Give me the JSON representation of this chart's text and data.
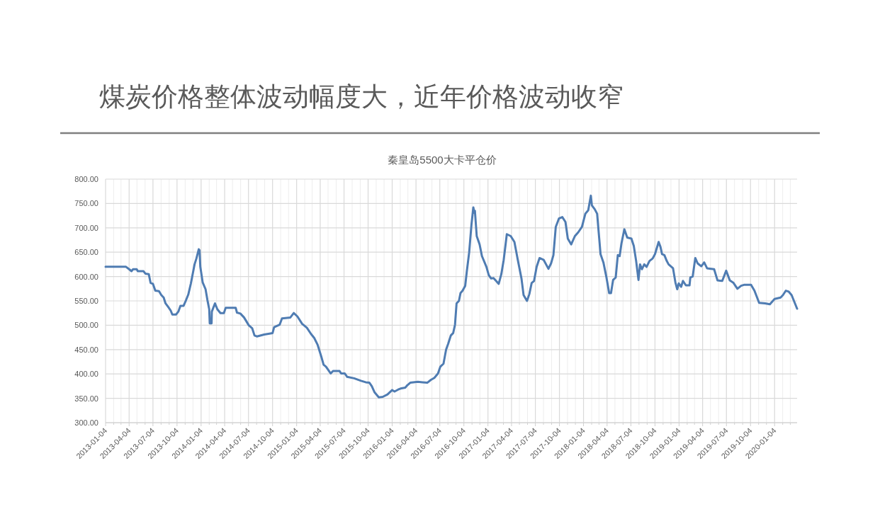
{
  "chart_data": {
    "type": "line",
    "title": "煤炭价格整体波动幅度大，近年价格波动收窄",
    "subtitle": "秦皇岛5500大卡平仓价",
    "xlim": [
      "2013-01-04",
      "2020-03-30"
    ],
    "ylim": [
      300,
      800
    ],
    "yticks": [
      {
        "value": 300,
        "label": "300.00"
      },
      {
        "value": 350,
        "label": "350.00"
      },
      {
        "value": 400,
        "label": "400.00"
      },
      {
        "value": 450,
        "label": "450.00"
      },
      {
        "value": 500,
        "label": "500.00"
      },
      {
        "value": 550,
        "label": "550.00"
      },
      {
        "value": 600,
        "label": "600.00"
      },
      {
        "value": 650,
        "label": "650.00"
      },
      {
        "value": 700,
        "label": "700.00"
      },
      {
        "value": 750,
        "label": "750.00"
      },
      {
        "value": 800,
        "label": "800.00"
      }
    ],
    "xticks": [
      {
        "value": "2013-01-04",
        "label": "2013-01-04"
      },
      {
        "value": "2013-02-04",
        "label": null
      },
      {
        "value": "2013-03-04",
        "label": null
      },
      {
        "value": "2013-04-04",
        "label": "2013-04-04"
      },
      {
        "value": "2013-05-04",
        "label": null
      },
      {
        "value": "2013-06-04",
        "label": null
      },
      {
        "value": "2013-07-04",
        "label": "2013-07-04"
      },
      {
        "value": "2013-08-04",
        "label": null
      },
      {
        "value": "2013-09-04",
        "label": null
      },
      {
        "value": "2013-10-04",
        "label": "2013-10-04"
      },
      {
        "value": "2013-11-04",
        "label": null
      },
      {
        "value": "2013-12-04",
        "label": null
      },
      {
        "value": "2014-01-04",
        "label": "2014-01-04"
      },
      {
        "value": "2014-02-04",
        "label": null
      },
      {
        "value": "2014-03-04",
        "label": null
      },
      {
        "value": "2014-04-04",
        "label": "2014-04-04"
      },
      {
        "value": "2014-05-04",
        "label": null
      },
      {
        "value": "2014-06-04",
        "label": null
      },
      {
        "value": "2014-07-04",
        "label": "2014-07-04"
      },
      {
        "value": "2014-08-04",
        "label": null
      },
      {
        "value": "2014-09-04",
        "label": null
      },
      {
        "value": "2014-10-04",
        "label": "2014-10-04"
      },
      {
        "value": "2014-11-04",
        "label": null
      },
      {
        "value": "2014-12-04",
        "label": null
      },
      {
        "value": "2015-01-04",
        "label": "2015-01-04"
      },
      {
        "value": "2015-02-04",
        "label": null
      },
      {
        "value": "2015-03-04",
        "label": null
      },
      {
        "value": "2015-04-04",
        "label": "2015-04-04"
      },
      {
        "value": "2015-05-04",
        "label": null
      },
      {
        "value": "2015-06-04",
        "label": null
      },
      {
        "value": "2015-07-04",
        "label": "2015-07-04"
      },
      {
        "value": "2015-08-04",
        "label": null
      },
      {
        "value": "2015-09-04",
        "label": null
      },
      {
        "value": "2015-10-04",
        "label": "2015-10-04"
      },
      {
        "value": "2015-11-04",
        "label": null
      },
      {
        "value": "2015-12-04",
        "label": null
      },
      {
        "value": "2016-01-04",
        "label": "2016-01-04"
      },
      {
        "value": "2016-02-04",
        "label": null
      },
      {
        "value": "2016-03-04",
        "label": null
      },
      {
        "value": "2016-04-04",
        "label": "2016-04-04"
      },
      {
        "value": "2016-05-04",
        "label": null
      },
      {
        "value": "2016-06-04",
        "label": null
      },
      {
        "value": "2016-07-04",
        "label": "2016-07-04"
      },
      {
        "value": "2016-08-04",
        "label": null
      },
      {
        "value": "2016-09-04",
        "label": null
      },
      {
        "value": "2016-10-04",
        "label": "2016-10-04"
      },
      {
        "value": "2016-11-04",
        "label": null
      },
      {
        "value": "2016-12-04",
        "label": null
      },
      {
        "value": "2017-01-04",
        "label": "2017-01-04"
      },
      {
        "value": "2017-02-04",
        "label": null
      },
      {
        "value": "2017-03-04",
        "label": null
      },
      {
        "value": "2017-04-04",
        "label": "2017-04-04"
      },
      {
        "value": "2017-05-04",
        "label": null
      },
      {
        "value": "2017-06-04",
        "label": null
      },
      {
        "value": "2017-07-04",
        "label": "2017-07-04"
      },
      {
        "value": "2017-08-04",
        "label": null
      },
      {
        "value": "2017-09-04",
        "label": null
      },
      {
        "value": "2017-10-04",
        "label": "2017-10-04"
      },
      {
        "value": "2017-11-04",
        "label": null
      },
      {
        "value": "2017-12-04",
        "label": null
      },
      {
        "value": "2018-01-04",
        "label": "2018-01-04"
      },
      {
        "value": "2018-02-04",
        "label": null
      },
      {
        "value": "2018-03-04",
        "label": null
      },
      {
        "value": "2018-04-04",
        "label": "2018-04-04"
      },
      {
        "value": "2018-05-04",
        "label": null
      },
      {
        "value": "2018-06-04",
        "label": null
      },
      {
        "value": "2018-07-04",
        "label": "2018-07-04"
      },
      {
        "value": "2018-08-04",
        "label": null
      },
      {
        "value": "2018-09-04",
        "label": null
      },
      {
        "value": "2018-10-04",
        "label": "2018-10-04"
      },
      {
        "value": "2018-11-04",
        "label": null
      },
      {
        "value": "2018-12-04",
        "label": null
      },
      {
        "value": "2019-01-04",
        "label": "2019-01-04"
      },
      {
        "value": "2019-02-04",
        "label": null
      },
      {
        "value": "2019-03-04",
        "label": null
      },
      {
        "value": "2019-04-04",
        "label": "2019-04-04"
      },
      {
        "value": "2019-05-04",
        "label": null
      },
      {
        "value": "2019-06-04",
        "label": null
      },
      {
        "value": "2019-07-04",
        "label": "2019-07-04"
      },
      {
        "value": "2019-08-04",
        "label": null
      },
      {
        "value": "2019-09-04",
        "label": null
      },
      {
        "value": "2019-10-04",
        "label": "2019-10-04"
      },
      {
        "value": "2019-11-04",
        "label": null
      },
      {
        "value": "2019-12-04",
        "label": null
      },
      {
        "value": "2020-01-04",
        "label": "2020-01-04"
      },
      {
        "value": "2020-02-04",
        "label": null
      },
      {
        "value": "2020-03-04",
        "label": null
      }
    ],
    "grid": true,
    "series": [
      {
        "color": "#4f7cb2",
        "x": [
          "2013-01-04",
          "2013-03-23",
          "2013-04-04",
          "2013-04-13",
          "2013-04-19",
          "2013-05-03",
          "2013-05-07",
          "2013-05-29",
          "2013-06-05",
          "2013-06-18",
          "2013-06-25",
          "2013-07-04",
          "2013-07-13",
          "2013-07-27",
          "2013-08-05",
          "2013-08-14",
          "2013-08-21",
          "2013-09-01",
          "2013-09-10",
          "2013-09-16",
          "2013-09-30",
          "2013-10-09",
          "2013-10-17",
          "2013-10-29",
          "2013-11-07",
          "2013-11-16",
          "2013-11-26",
          "2013-12-10",
          "2013-12-17",
          "2013-12-26",
          "2013-12-29",
          "2014-01-01",
          "2014-01-10",
          "2014-01-21",
          "2014-01-28",
          "2014-02-04",
          "2014-02-06",
          "2014-02-13",
          "2014-02-14",
          "2014-02-26",
          "2014-03-07",
          "2014-03-19",
          "2014-04-01",
          "2014-04-08",
          "2014-05-16",
          "2014-05-21",
          "2014-06-03",
          "2014-06-17",
          "2014-06-26",
          "2014-07-05",
          "2014-07-18",
          "2014-07-27",
          "2014-08-05",
          "2014-09-02",
          "2014-10-04",
          "2014-10-10",
          "2014-10-31",
          "2014-11-09",
          "2014-12-11",
          "2014-12-24",
          "2015-01-07",
          "2015-01-25",
          "2015-02-12",
          "2015-02-28",
          "2015-03-12",
          "2015-03-25",
          "2015-04-08",
          "2015-04-17",
          "2015-04-26",
          "2015-05-05",
          "2015-05-14",
          "2015-05-23",
          "2015-06-17",
          "2015-06-23",
          "2015-07-07",
          "2015-07-16",
          "2015-08-12",
          "2015-09-07",
          "2015-09-25",
          "2015-10-09",
          "2015-10-18",
          "2015-10-29",
          "2015-11-14",
          "2015-11-29",
          "2015-12-17",
          "2016-01-04",
          "2016-01-13",
          "2016-01-27",
          "2016-02-05",
          "2016-02-23",
          "2016-03-02",
          "2016-03-13",
          "2016-04-11",
          "2016-04-29",
          "2016-05-17",
          "2016-05-31",
          "2016-06-13",
          "2016-06-27",
          "2016-07-06",
          "2016-07-18",
          "2016-07-28",
          "2016-08-05",
          "2016-08-15",
          "2016-08-24",
          "2016-08-31",
          "2016-09-06",
          "2016-09-15",
          "2016-09-21",
          "2016-09-29",
          "2016-10-09",
          "2016-10-15",
          "2016-10-24",
          "2016-11-02",
          "2016-11-09",
          "2016-11-13",
          "2016-11-15",
          "2016-11-22",
          "2016-12-03",
          "2016-12-12",
          "2016-12-29",
          "2017-01-07",
          "2017-01-16",
          "2017-01-25",
          "2017-02-04",
          "2017-02-14",
          "2017-02-24",
          "2017-03-05",
          "2017-03-17",
          "2017-04-01",
          "2017-04-15",
          "2017-04-28",
          "2017-05-12",
          "2017-05-20",
          "2017-06-02",
          "2017-06-11",
          "2017-06-20",
          "2017-06-29",
          "2017-07-09",
          "2017-07-20",
          "2017-08-05",
          "2017-08-23",
          "2017-09-02",
          "2017-09-11",
          "2017-09-20",
          "2017-10-02",
          "2017-10-15",
          "2017-10-27",
          "2017-11-05",
          "2017-11-18",
          "2017-12-02",
          "2017-12-15",
          "2017-12-29",
          "2018-01-11",
          "2018-01-22",
          "2018-02-01",
          "2018-02-05",
          "2018-02-16",
          "2018-02-25",
          "2018-03-05",
          "2018-03-10",
          "2018-03-21",
          "2018-04-01",
          "2018-04-12",
          "2018-04-19",
          "2018-04-27",
          "2018-05-07",
          "2018-05-15",
          "2018-05-22",
          "2018-05-29",
          "2018-06-09",
          "2018-06-20",
          "2018-07-06",
          "2018-07-15",
          "2018-07-24",
          "2018-08-02",
          "2018-08-08",
          "2018-08-15",
          "2018-08-24",
          "2018-09-02",
          "2018-09-13",
          "2018-09-25",
          "2018-10-04",
          "2018-10-18",
          "2018-10-25",
          "2018-10-31",
          "2018-11-09",
          "2018-11-18",
          "2018-11-25",
          "2018-12-12",
          "2018-12-21",
          "2018-12-28",
          "2019-01-03",
          "2019-01-12",
          "2019-01-19",
          "2019-01-30",
          "2019-02-13",
          "2019-02-16",
          "2019-02-25",
          "2019-03-07",
          "2019-03-16",
          "2019-03-30",
          "2019-04-10",
          "2019-04-21",
          "2019-05-18",
          "2019-05-31",
          "2019-06-18",
          "2019-07-03",
          "2019-07-17",
          "2019-07-31",
          "2019-08-15",
          "2019-08-29",
          "2019-09-09",
          "2019-10-06",
          "2019-10-19",
          "2019-11-06",
          "2019-11-29",
          "2019-12-17",
          "2020-01-04",
          "2020-01-27",
          "2020-02-05",
          "2020-02-16",
          "2020-02-27",
          "2020-03-09",
          "2020-03-30"
        ],
        "values": [
          620,
          620,
          615,
          611,
          615,
          615,
          611,
          611,
          606,
          605,
          587,
          585,
          571,
          570,
          562,
          557,
          545,
          537,
          530,
          522,
          522,
          528,
          540,
          540,
          551,
          563,
          586,
          625,
          637,
          656,
          654,
          620,
          588,
          574,
          552,
          533,
          504,
          504,
          528,
          545,
          533,
          525,
          525,
          536,
          536,
          526,
          524,
          516,
          508,
          500,
          494,
          479,
          477,
          481,
          484,
          496,
          501,
          514,
          516,
          525,
          518,
          503,
          495,
          482,
          474,
          460,
          436,
          419,
          415,
          408,
          401,
          406,
          406,
          401,
          401,
          394,
          391,
          386,
          383,
          382,
          375,
          362,
          352,
          353,
          358,
          367,
          364,
          368,
          370,
          372,
          377,
          382,
          384,
          383,
          382,
          388,
          392,
          401,
          415,
          421,
          450,
          462,
          479,
          484,
          501,
          545,
          550,
          566,
          571,
          581,
          610,
          649,
          707,
          742,
          731,
          735,
          683,
          666,
          642,
          620,
          603,
          596,
          597,
          591,
          585,
          605,
          634,
          687,
          683,
          671,
          634,
          596,
          562,
          550,
          564,
          587,
          591,
          620,
          638,
          634,
          616,
          627,
          644,
          702,
          719,
          722,
          712,
          678,
          666,
          683,
          691,
          702,
          729,
          736,
          766,
          746,
          738,
          729,
          678,
          646,
          629,
          600,
          566,
          566,
          593,
          598,
          644,
          642,
          668,
          697,
          680,
          678,
          663,
          632,
          593,
          625,
          615,
          625,
          620,
          632,
          637,
          646,
          671,
          661,
          646,
          644,
          632,
          625,
          617,
          588,
          574,
          586,
          579,
          591,
          582,
          582,
          598,
          600,
          638,
          627,
          621,
          629,
          617,
          615,
          592,
          591,
          612,
          592,
          587,
          575,
          581,
          583,
          583,
          571,
          546,
          545,
          543,
          554,
          557,
          562,
          571,
          569,
          562,
          534
        ]
      }
    ]
  }
}
